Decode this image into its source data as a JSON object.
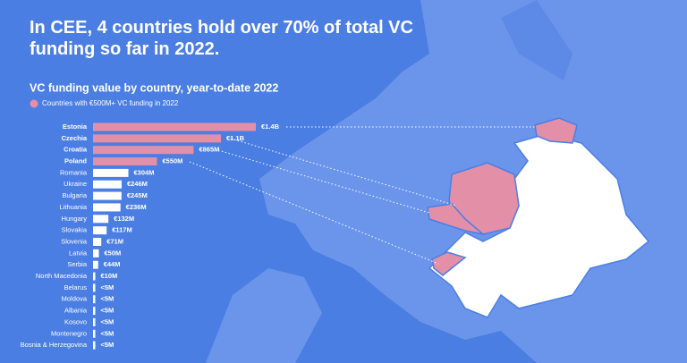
{
  "chart_data": {
    "type": "bar",
    "orientation": "horizontal",
    "title": "In CEE, 4 countries hold over 70% of total VC funding so far in 2022.",
    "subtitle": "VC funding value by country, year-to-date 2022",
    "legend": {
      "name": "Countries with €500M+ VC funding in 2022",
      "color": "#e38fa8"
    },
    "categories": [
      "Estonia",
      "Czechia",
      "Croatia",
      "Poland",
      "Romania",
      "Ukraine",
      "Bulgaria",
      "Lithuania",
      "Hungary",
      "Slovakia",
      "Slovenia",
      "Latvia",
      "Serbia",
      "North Macedonia",
      "Belarus",
      "Moldova",
      "Albania",
      "Kosovo",
      "Montenegro",
      "Bosnia & Herzegovina"
    ],
    "values": [
      1400,
      1100,
      865,
      550,
      304,
      246,
      245,
      236,
      132,
      117,
      71,
      50,
      44,
      10,
      5,
      5,
      5,
      5,
      5,
      5
    ],
    "value_labels": [
      "€1.4B",
      "€1.1B",
      "€865M",
      "€550M",
      "€304M",
      "€246M",
      "€245M",
      "€236M",
      "€132M",
      "€117M",
      "€71M",
      "€50M",
      "€44M",
      "€10M",
      "<5M",
      "<5M",
      "<5M",
      "<5M",
      "<5M",
      "<5M"
    ],
    "colors": [
      "#e38fa8",
      "#e38fa8",
      "#e38fa8",
      "#e38fa8",
      "#ffffff",
      "#ffffff",
      "#ffffff",
      "#ffffff",
      "#ffffff",
      "#ffffff",
      "#ffffff",
      "#ffffff",
      "#ffffff",
      "#ffffff",
      "#ffffff",
      "#ffffff",
      "#ffffff",
      "#ffffff",
      "#ffffff",
      "#ffffff"
    ]
  }
}
